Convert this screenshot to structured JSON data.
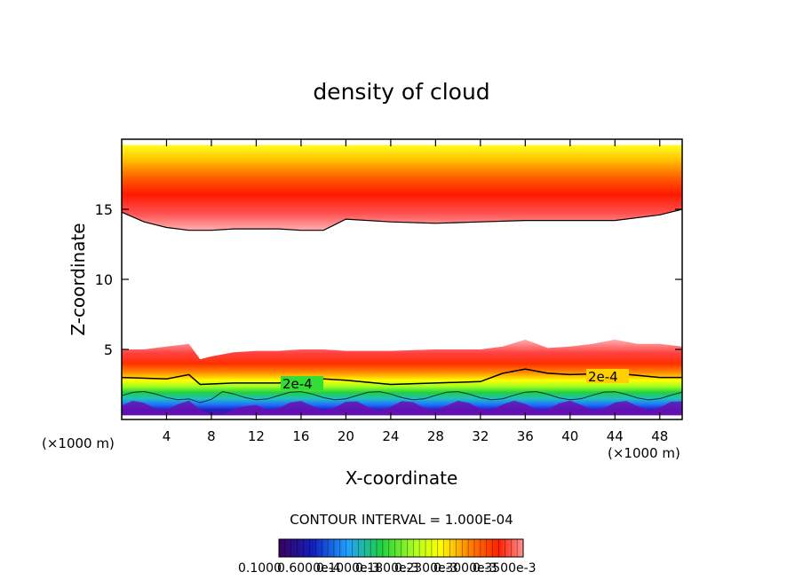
{
  "chart_data": {
    "type": "heatmap",
    "title": "density of cloud",
    "xlabel": "X-coordinate",
    "ylabel": "Z-coordinate",
    "x_unit": "(×1000 m)",
    "xlim": [
      0,
      50
    ],
    "ylim": [
      0,
      20
    ],
    "x_ticks": [
      4,
      8,
      12,
      16,
      20,
      24,
      28,
      32,
      36,
      40,
      44,
      48
    ],
    "y_ticks": [
      5,
      10,
      15
    ],
    "contour_interval_text": "CONTOUR INTERVAL = 1.000E-04",
    "contour_line_labels": [
      "2e-4",
      "2e-4"
    ],
    "colorbar_labels": [
      "0.1000",
      "0.6000e-4",
      "0.1000e-3",
      "0.1800e-3",
      "0.2300e-3",
      "0.3000e-3",
      "0.3500e-3"
    ],
    "colormap": [
      "#3a0060",
      "#1020c0",
      "#20a0ff",
      "#20d040",
      "#b0ff20",
      "#ffff00",
      "#ff8000",
      "#ff2000",
      "#ff9090"
    ],
    "upper_layer": {
      "top_z": 19.6,
      "base_z": [
        [
          0,
          14.8
        ],
        [
          2,
          14.1
        ],
        [
          4,
          13.7
        ],
        [
          6,
          13.5
        ],
        [
          8,
          13.5
        ],
        [
          10,
          13.6
        ],
        [
          12,
          13.6
        ],
        [
          14,
          13.6
        ],
        [
          16,
          13.5
        ],
        [
          18,
          13.5
        ],
        [
          20,
          14.3
        ],
        [
          24,
          14.1
        ],
        [
          28,
          14.0
        ],
        [
          32,
          14.1
        ],
        [
          36,
          14.2
        ],
        [
          40,
          14.2
        ],
        [
          44,
          14.2
        ],
        [
          48,
          14.6
        ],
        [
          50,
          15.0
        ]
      ]
    },
    "lower_layer": {
      "top_z": [
        [
          0,
          5.0
        ],
        [
          2,
          5.0
        ],
        [
          4,
          5.2
        ],
        [
          6,
          5.4
        ],
        [
          7,
          4.3
        ],
        [
          8,
          4.5
        ],
        [
          10,
          4.8
        ],
        [
          12,
          4.9
        ],
        [
          14,
          4.9
        ],
        [
          16,
          5.0
        ],
        [
          18,
          5.0
        ],
        [
          20,
          4.9
        ],
        [
          24,
          4.9
        ],
        [
          28,
          5.0
        ],
        [
          32,
          5.0
        ],
        [
          34,
          5.2
        ],
        [
          36,
          5.7
        ],
        [
          38,
          5.1
        ],
        [
          40,
          5.2
        ],
        [
          42,
          5.4
        ],
        [
          44,
          5.7
        ],
        [
          46,
          5.4
        ],
        [
          48,
          5.4
        ],
        [
          50,
          5.2
        ]
      ],
      "contour_2e4_z": [
        [
          0,
          3.0
        ],
        [
          4,
          2.9
        ],
        [
          6,
          3.2
        ],
        [
          7,
          2.5
        ],
        [
          10,
          2.6
        ],
        [
          14,
          2.6
        ],
        [
          18,
          2.9
        ],
        [
          20,
          2.8
        ],
        [
          24,
          2.5
        ],
        [
          28,
          2.6
        ],
        [
          32,
          2.7
        ],
        [
          34,
          3.3
        ],
        [
          36,
          3.6
        ],
        [
          38,
          3.3
        ],
        [
          40,
          3.2
        ],
        [
          44,
          3.3
        ],
        [
          48,
          3.0
        ],
        [
          50,
          3.0
        ]
      ],
      "base_z": 0.3
    }
  }
}
